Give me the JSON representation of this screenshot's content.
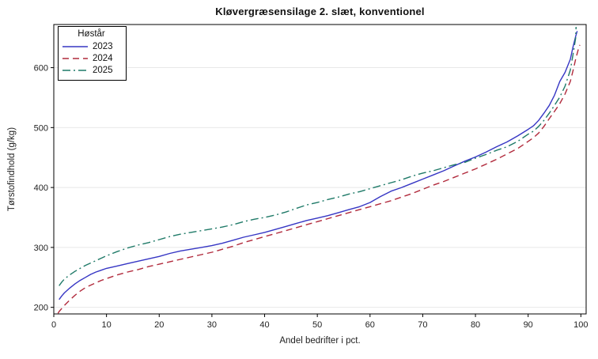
{
  "title": "Kløvergræsensilage 2. slæt, konventionel",
  "x_axis": {
    "label": "Andel bedrifter i pct."
  },
  "y_axis": {
    "label": "Tørstofindhold (g/kg)"
  },
  "legend": {
    "title": "Høstår"
  },
  "chart_data": {
    "type": "line",
    "title": "Kløvergræsensilage 2. slæt, konventionel",
    "xlabel": "Andel bedrifter i pct.",
    "ylabel": "Tørstofindhold (g/kg)",
    "xlim": [
      0,
      101
    ],
    "ylim": [
      189,
      672
    ],
    "xticks": [
      0,
      10,
      20,
      30,
      40,
      50,
      60,
      70,
      80,
      90,
      100
    ],
    "yticks": [
      200,
      300,
      400,
      500,
      600
    ],
    "grid": "horizontal",
    "gridline_color": "#e8e8e8",
    "legend_position": "top-left-inside",
    "series": [
      {
        "name": "2023",
        "color": "#3636c4",
        "line_style": "solid",
        "points": [
          [
            1,
            213
          ],
          [
            1.5,
            219
          ],
          [
            2,
            224
          ],
          [
            3,
            232
          ],
          [
            4,
            239
          ],
          [
            5,
            245
          ],
          [
            6,
            250
          ],
          [
            7,
            255
          ],
          [
            8,
            259
          ],
          [
            9,
            262
          ],
          [
            10,
            265
          ],
          [
            12,
            269
          ],
          [
            14,
            273
          ],
          [
            16,
            277
          ],
          [
            18,
            281
          ],
          [
            20,
            285
          ],
          [
            22,
            290
          ],
          [
            24,
            294
          ],
          [
            26,
            297
          ],
          [
            28,
            300
          ],
          [
            30,
            303
          ],
          [
            32,
            307
          ],
          [
            34,
            312
          ],
          [
            36,
            317
          ],
          [
            38,
            321
          ],
          [
            40,
            325
          ],
          [
            42,
            330
          ],
          [
            44,
            335
          ],
          [
            46,
            340
          ],
          [
            48,
            345
          ],
          [
            50,
            349
          ],
          [
            52,
            353
          ],
          [
            54,
            358
          ],
          [
            56,
            363
          ],
          [
            58,
            368
          ],
          [
            60,
            375
          ],
          [
            62,
            385
          ],
          [
            64,
            394
          ],
          [
            66,
            400
          ],
          [
            68,
            407
          ],
          [
            70,
            414
          ],
          [
            72,
            421
          ],
          [
            74,
            428
          ],
          [
            76,
            436
          ],
          [
            78,
            444
          ],
          [
            80,
            451
          ],
          [
            82,
            459
          ],
          [
            84,
            468
          ],
          [
            86,
            476
          ],
          [
            88,
            486
          ],
          [
            90,
            497
          ],
          [
            91,
            503
          ],
          [
            92,
            512
          ],
          [
            93,
            524
          ],
          [
            94,
            537
          ],
          [
            95,
            554
          ],
          [
            96,
            577
          ],
          [
            97,
            592
          ],
          [
            98,
            614
          ],
          [
            98.5,
            634
          ],
          [
            99,
            652
          ],
          [
            99.3,
            661
          ]
        ]
      },
      {
        "name": "2024",
        "color": "#b12a3c",
        "line_style": "dashed",
        "points": [
          [
            0.8,
            190
          ],
          [
            1,
            193
          ],
          [
            1.5,
            198
          ],
          [
            2,
            203
          ],
          [
            3,
            212
          ],
          [
            4,
            220
          ],
          [
            5,
            227
          ],
          [
            6,
            233
          ],
          [
            7,
            237
          ],
          [
            8,
            241
          ],
          [
            9,
            245
          ],
          [
            10,
            248
          ],
          [
            12,
            254
          ],
          [
            14,
            259
          ],
          [
            16,
            263
          ],
          [
            18,
            268
          ],
          [
            20,
            272
          ],
          [
            22,
            276
          ],
          [
            24,
            280
          ],
          [
            26,
            284
          ],
          [
            28,
            288
          ],
          [
            30,
            292
          ],
          [
            32,
            297
          ],
          [
            34,
            302
          ],
          [
            36,
            308
          ],
          [
            38,
            313
          ],
          [
            40,
            318
          ],
          [
            42,
            323
          ],
          [
            44,
            328
          ],
          [
            46,
            333
          ],
          [
            48,
            338
          ],
          [
            50,
            343
          ],
          [
            52,
            348
          ],
          [
            54,
            353
          ],
          [
            56,
            358
          ],
          [
            58,
            363
          ],
          [
            60,
            368
          ],
          [
            62,
            373
          ],
          [
            64,
            378
          ],
          [
            66,
            384
          ],
          [
            68,
            390
          ],
          [
            70,
            397
          ],
          [
            72,
            404
          ],
          [
            74,
            410
          ],
          [
            76,
            417
          ],
          [
            78,
            424
          ],
          [
            80,
            431
          ],
          [
            82,
            439
          ],
          [
            84,
            447
          ],
          [
            86,
            456
          ],
          [
            88,
            465
          ],
          [
            90,
            477
          ],
          [
            91,
            483
          ],
          [
            92,
            491
          ],
          [
            93,
            502
          ],
          [
            94,
            515
          ],
          [
            95,
            527
          ],
          [
            96,
            540
          ],
          [
            97,
            556
          ],
          [
            98,
            577
          ],
          [
            98.6,
            598
          ],
          [
            99,
            614
          ],
          [
            99.5,
            630
          ],
          [
            99.8,
            638
          ]
        ]
      },
      {
        "name": "2025",
        "color": "#1f7a68",
        "line_style": "dashdot",
        "points": [
          [
            1,
            236
          ],
          [
            1.5,
            242
          ],
          [
            2,
            247
          ],
          [
            3,
            254
          ],
          [
            4,
            260
          ],
          [
            5,
            265
          ],
          [
            6,
            270
          ],
          [
            7,
            274
          ],
          [
            8,
            278
          ],
          [
            10,
            286
          ],
          [
            12,
            293
          ],
          [
            14,
            299
          ],
          [
            16,
            304
          ],
          [
            18,
            308
          ],
          [
            20,
            313
          ],
          [
            22,
            318
          ],
          [
            24,
            322
          ],
          [
            26,
            325
          ],
          [
            28,
            328
          ],
          [
            30,
            331
          ],
          [
            32,
            334
          ],
          [
            34,
            338
          ],
          [
            36,
            343
          ],
          [
            38,
            347
          ],
          [
            40,
            350
          ],
          [
            42,
            354
          ],
          [
            44,
            359
          ],
          [
            46,
            365
          ],
          [
            48,
            371
          ],
          [
            50,
            375
          ],
          [
            52,
            380
          ],
          [
            54,
            384
          ],
          [
            56,
            389
          ],
          [
            58,
            393
          ],
          [
            60,
            398
          ],
          [
            62,
            403
          ],
          [
            64,
            408
          ],
          [
            66,
            413
          ],
          [
            68,
            419
          ],
          [
            70,
            424
          ],
          [
            72,
            428
          ],
          [
            74,
            433
          ],
          [
            76,
            438
          ],
          [
            78,
            442
          ],
          [
            80,
            449
          ],
          [
            82,
            455
          ],
          [
            84,
            462
          ],
          [
            86,
            468
          ],
          [
            88,
            477
          ],
          [
            90,
            489
          ],
          [
            91,
            494
          ],
          [
            92,
            502
          ],
          [
            93,
            512
          ],
          [
            94,
            524
          ],
          [
            95,
            537
          ],
          [
            96,
            551
          ],
          [
            97,
            569
          ],
          [
            98,
            596
          ],
          [
            98.5,
            621
          ],
          [
            99,
            649
          ],
          [
            99.1,
            668
          ]
        ]
      }
    ]
  }
}
